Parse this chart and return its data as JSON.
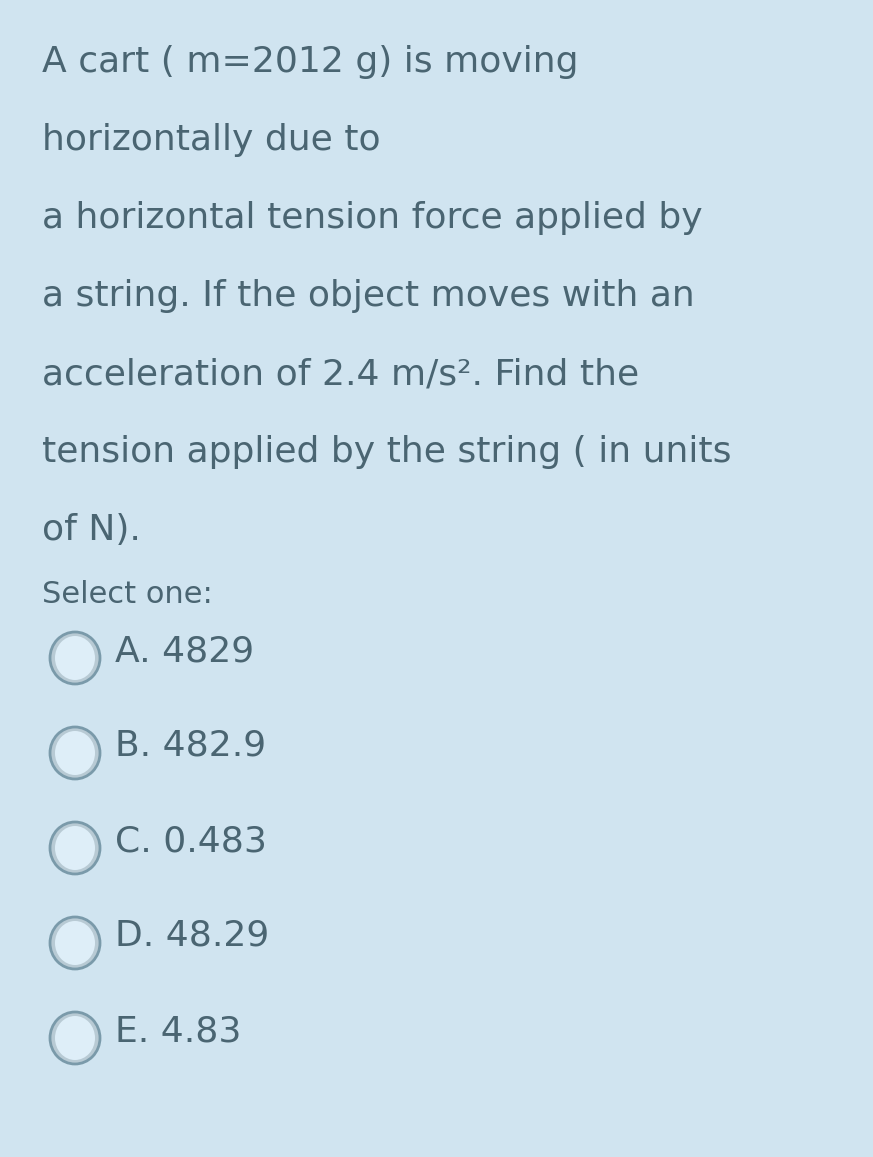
{
  "background_color": "#d0e4f0",
  "text_color": "#4a6572",
  "question_lines": [
    "A cart ( m=2012 g) is moving",
    "horizontally due to",
    "a horizontal tension force applied by",
    "a string. If the object moves with an",
    "acceleration of 2.4 m/s². Find the",
    "tension applied by the string ( in units",
    "of N)."
  ],
  "select_label": "Select one:",
  "options": [
    {
      "letter": "A",
      "text": "4829"
    },
    {
      "letter": "B",
      "text": "482.9"
    },
    {
      "letter": "C",
      "text": "0.483"
    },
    {
      "letter": "D",
      "text": "48.29"
    },
    {
      "letter": "E",
      "text": "4.83"
    }
  ],
  "question_fontsize": 26,
  "select_fontsize": 22,
  "option_fontsize": 26,
  "fig_width": 8.73,
  "fig_height": 11.57,
  "dpi": 100
}
